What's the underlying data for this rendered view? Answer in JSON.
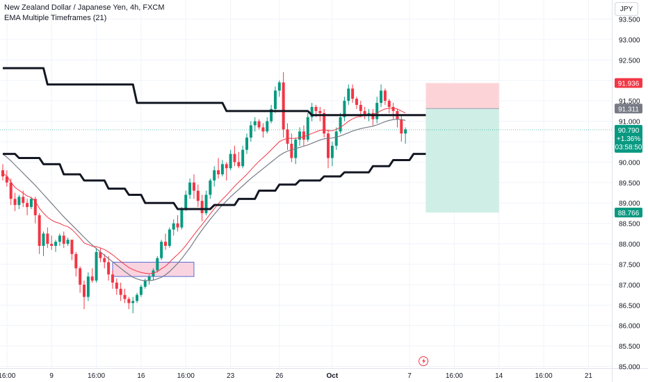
{
  "legend": {
    "symbol_line": "New Zealand Dollar / Japanese Yen, 4h, FXCM",
    "indicator_line": "EMA Multiple Timeframes (21)"
  },
  "currency": "JPY",
  "colors": {
    "up": "#089981",
    "down": "#f23645",
    "ema_fast": "#f23645",
    "ema_mid": "#787b86",
    "ema_htf": "#131722",
    "zone_fill": "#f8c8d8",
    "zone_border": "#5b6bd6",
    "target_fill": "#cfeee6",
    "stop_fill": "#fcd4d8",
    "grid": "#f0f3fa"
  },
  "chart_data": {
    "type": "candlestick",
    "title": "New Zealand Dollar / Japanese Yen, 4h, FXCM",
    "ylim": [
      85.0,
      93.75
    ],
    "y_ticks": [
      "85.000",
      "85.500",
      "86.000",
      "86.500",
      "87.000",
      "87.500",
      "88.000",
      "88.500",
      "89.000",
      "89.500",
      "90.000",
      "90.500",
      "91.000",
      "91.500",
      "92.000",
      "92.500",
      "93.000",
      "93.500"
    ],
    "x_ticks": [
      {
        "label": "16:00",
        "i": 1
      },
      {
        "label": "9",
        "i": 12
      },
      {
        "label": "16:00",
        "i": 23
      },
      {
        "label": "16",
        "i": 34
      },
      {
        "label": "16:00",
        "i": 45
      },
      {
        "label": "23",
        "i": 56
      },
      {
        "label": "26",
        "i": 68
      },
      {
        "label": "Oct",
        "i": 81
      },
      {
        "label": "7",
        "i": 100
      },
      {
        "label": "16:00",
        "i": 111
      },
      {
        "label": "14",
        "i": 122
      },
      {
        "label": "16:00",
        "i": 133
      },
      {
        "label": "21",
        "i": 144
      }
    ],
    "candles": [
      [
        89.8,
        89.95,
        89.55,
        89.65
      ],
      [
        89.65,
        89.8,
        89.4,
        89.5
      ],
      [
        89.5,
        89.6,
        88.95,
        89.1
      ],
      [
        89.1,
        89.25,
        88.8,
        88.95
      ],
      [
        88.95,
        89.2,
        88.85,
        89.15
      ],
      [
        89.15,
        89.3,
        88.9,
        89.0
      ],
      [
        89.0,
        89.1,
        88.7,
        88.9
      ],
      [
        88.9,
        89.15,
        88.85,
        89.1
      ],
      [
        89.1,
        89.15,
        88.5,
        88.7
      ],
      [
        88.7,
        88.75,
        87.75,
        87.95
      ],
      [
        87.95,
        88.3,
        87.7,
        88.25
      ],
      [
        88.25,
        88.4,
        87.9,
        88.0
      ],
      [
        88.0,
        88.2,
        87.85,
        87.95
      ],
      [
        87.95,
        88.1,
        87.8,
        88.05
      ],
      [
        88.05,
        88.25,
        87.95,
        88.2
      ],
      [
        88.2,
        88.3,
        87.9,
        88.0
      ],
      [
        88.0,
        88.15,
        87.95,
        88.1
      ],
      [
        88.1,
        88.1,
        87.6,
        87.75
      ],
      [
        87.75,
        87.8,
        87.2,
        87.4
      ],
      [
        87.4,
        87.45,
        86.8,
        87.0
      ],
      [
        87.0,
        87.1,
        86.4,
        86.7
      ],
      [
        86.7,
        87.3,
        86.6,
        87.2
      ],
      [
        87.2,
        87.4,
        87.05,
        87.1
      ],
      [
        87.1,
        87.9,
        87.05,
        87.8
      ],
      [
        87.8,
        87.9,
        87.55,
        87.65
      ],
      [
        87.65,
        87.75,
        87.4,
        87.55
      ],
      [
        87.55,
        87.7,
        87.1,
        87.25
      ],
      [
        87.25,
        87.35,
        86.9,
        87.05
      ],
      [
        87.05,
        87.15,
        86.75,
        86.9
      ],
      [
        86.9,
        87.05,
        86.6,
        86.75
      ],
      [
        86.75,
        86.9,
        86.55,
        86.65
      ],
      [
        86.65,
        86.7,
        86.4,
        86.55
      ],
      [
        86.55,
        86.7,
        86.3,
        86.6
      ],
      [
        86.6,
        86.8,
        86.55,
        86.75
      ],
      [
        86.75,
        87.0,
        86.7,
        86.95
      ],
      [
        86.95,
        87.15,
        86.9,
        87.1
      ],
      [
        87.1,
        87.25,
        87.0,
        87.2
      ],
      [
        87.2,
        87.4,
        87.1,
        87.35
      ],
      [
        87.35,
        87.7,
        87.3,
        87.65
      ],
      [
        87.65,
        88.1,
        87.6,
        88.05
      ],
      [
        88.05,
        88.25,
        87.85,
        87.95
      ],
      [
        87.95,
        88.4,
        87.9,
        88.35
      ],
      [
        88.35,
        88.6,
        88.2,
        88.5
      ],
      [
        88.5,
        88.7,
        88.3,
        88.4
      ],
      [
        88.4,
        88.9,
        88.35,
        88.85
      ],
      [
        88.85,
        89.3,
        88.8,
        89.2
      ],
      [
        89.2,
        89.6,
        89.1,
        89.5
      ],
      [
        89.5,
        89.7,
        89.1,
        89.3
      ],
      [
        89.3,
        89.45,
        88.9,
        89.05
      ],
      [
        89.05,
        89.2,
        88.55,
        88.75
      ],
      [
        88.75,
        89.3,
        88.7,
        89.2
      ],
      [
        89.2,
        89.6,
        89.1,
        89.55
      ],
      [
        89.55,
        89.9,
        89.4,
        89.8
      ],
      [
        89.8,
        90.1,
        89.6,
        89.7
      ],
      [
        89.7,
        90.05,
        89.65,
        89.95
      ],
      [
        89.95,
        90.0,
        89.55,
        89.85
      ],
      [
        89.85,
        90.3,
        89.8,
        90.2
      ],
      [
        90.2,
        90.4,
        89.9,
        90.0
      ],
      [
        90.0,
        90.25,
        89.85,
        89.9
      ],
      [
        89.9,
        90.4,
        89.85,
        90.3
      ],
      [
        90.3,
        90.7,
        90.2,
        90.6
      ],
      [
        90.6,
        91.0,
        90.5,
        90.9
      ],
      [
        90.9,
        91.1,
        90.75,
        91.0
      ],
      [
        91.0,
        91.05,
        90.8,
        90.85
      ],
      [
        90.85,
        90.95,
        90.6,
        90.75
      ],
      [
        90.75,
        91.1,
        90.7,
        91.0
      ],
      [
        91.0,
        91.4,
        90.95,
        91.3
      ],
      [
        91.3,
        91.85,
        91.2,
        91.75
      ],
      [
        91.75,
        92.0,
        91.6,
        91.95
      ],
      [
        91.95,
        92.2,
        90.6,
        90.8
      ],
      [
        90.8,
        90.95,
        90.3,
        90.45
      ],
      [
        90.45,
        90.7,
        90.0,
        90.1
      ],
      [
        90.1,
        90.6,
        89.95,
        90.55
      ],
      [
        90.55,
        90.85,
        90.4,
        90.75
      ],
      [
        90.75,
        90.9,
        90.4,
        90.55
      ],
      [
        90.55,
        91.2,
        90.5,
        91.1
      ],
      [
        91.1,
        91.45,
        91.0,
        91.35
      ],
      [
        91.35,
        91.4,
        91.1,
        91.25
      ],
      [
        91.25,
        91.35,
        91.0,
        91.2
      ],
      [
        91.2,
        91.3,
        90.6,
        90.7
      ],
      [
        90.7,
        90.8,
        89.85,
        90.1
      ],
      [
        90.1,
        90.5,
        89.9,
        90.4
      ],
      [
        90.4,
        90.85,
        90.3,
        90.75
      ],
      [
        90.75,
        91.2,
        90.7,
        91.1
      ],
      [
        91.1,
        91.6,
        91.0,
        91.5
      ],
      [
        91.5,
        91.9,
        91.4,
        91.8
      ],
      [
        91.8,
        91.9,
        91.45,
        91.55
      ],
      [
        91.55,
        91.6,
        91.3,
        91.4
      ],
      [
        91.4,
        91.5,
        91.1,
        91.25
      ],
      [
        91.25,
        91.35,
        91.05,
        91.15
      ],
      [
        91.15,
        91.3,
        91.0,
        91.2
      ],
      [
        91.2,
        91.3,
        90.9,
        91.05
      ],
      [
        91.05,
        91.6,
        90.95,
        91.45
      ],
      [
        91.45,
        91.9,
        91.35,
        91.75
      ],
      [
        91.75,
        91.8,
        91.4,
        91.5
      ],
      [
        91.5,
        91.55,
        91.2,
        91.35
      ],
      [
        91.35,
        91.45,
        91.05,
        91.25
      ],
      [
        91.25,
        91.3,
        90.85,
        91.05
      ],
      [
        91.05,
        91.15,
        90.5,
        90.7
      ],
      [
        90.7,
        90.85,
        90.45,
        90.8
      ]
    ],
    "ema_fast": [
      89.72,
      89.66,
      89.51,
      89.38,
      89.31,
      89.24,
      89.17,
      89.13,
      89.04,
      88.87,
      88.75,
      88.65,
      88.58,
      88.53,
      88.5,
      88.45,
      88.42,
      88.35,
      88.25,
      88.14,
      88.02,
      87.98,
      87.94,
      87.93,
      87.9,
      87.86,
      87.8,
      87.73,
      87.65,
      87.57,
      87.49,
      87.42,
      87.37,
      87.33,
      87.3,
      87.28,
      87.27,
      87.28,
      87.32,
      87.39,
      87.45,
      87.55,
      87.65,
      87.74,
      87.84,
      87.96,
      88.09,
      88.22,
      88.35,
      88.47,
      88.6,
      88.73,
      88.86,
      88.98,
      89.09,
      89.19,
      89.3,
      89.41,
      89.51,
      89.6,
      89.7,
      89.81,
      89.92,
      90.02,
      90.11,
      90.2,
      90.3,
      90.4,
      90.5,
      90.55,
      90.58,
      90.58,
      90.58,
      90.6,
      90.62,
      90.66,
      90.7,
      90.74,
      90.78,
      90.79,
      90.77,
      90.77,
      90.8,
      90.85,
      90.92,
      91.0,
      91.06,
      91.1,
      91.12,
      91.14,
      91.16,
      91.17,
      91.2,
      91.26,
      91.3,
      91.32,
      91.32,
      91.3,
      91.25,
      91.2
    ],
    "ema_mid": [
      90.2,
      90.12,
      90.03,
      89.93,
      89.83,
      89.73,
      89.63,
      89.53,
      89.43,
      89.32,
      89.21,
      89.1,
      88.99,
      88.88,
      88.77,
      88.66,
      88.56,
      88.46,
      88.36,
      88.26,
      88.16,
      88.06,
      87.97,
      87.88,
      87.8,
      87.72,
      87.64,
      87.56,
      87.48,
      87.4,
      87.32,
      87.25,
      87.18,
      87.14,
      87.11,
      87.1,
      87.1,
      87.11,
      87.14,
      87.18,
      87.24,
      87.32,
      87.42,
      87.52,
      87.64,
      87.77,
      87.9,
      88.05,
      88.2,
      88.34,
      88.47,
      88.6,
      88.72,
      88.84,
      88.95,
      89.05,
      89.15,
      89.24,
      89.33,
      89.42,
      89.51,
      89.6,
      89.68,
      89.76,
      89.84,
      89.92,
      90.0,
      90.08,
      90.16,
      90.22,
      90.27,
      90.3,
      90.33,
      90.36,
      90.39,
      90.42,
      90.46,
      90.5,
      90.54,
      90.57,
      90.58,
      90.59,
      90.61,
      90.64,
      90.68,
      90.72,
      90.76,
      90.79,
      90.82,
      90.84,
      90.86,
      90.88,
      90.91,
      90.95,
      90.99,
      91.02,
      91.04,
      91.05,
      91.04,
      91.02
    ],
    "ema_htf_a": [
      [
        0,
        92.3
      ],
      [
        10,
        92.3
      ],
      [
        11,
        91.9
      ],
      [
        32,
        91.9
      ],
      [
        33,
        91.45
      ],
      [
        54,
        91.45
      ],
      [
        55,
        91.25
      ],
      [
        75,
        91.25
      ],
      [
        76,
        91.15
      ],
      [
        104,
        91.15
      ]
    ],
    "ema_htf_b": [
      [
        0,
        90.2
      ],
      [
        3,
        90.2
      ],
      [
        4,
        90.1
      ],
      [
        9,
        90.1
      ],
      [
        10,
        89.95
      ],
      [
        14,
        89.95
      ],
      [
        15,
        89.7
      ],
      [
        19,
        89.7
      ],
      [
        20,
        89.55
      ],
      [
        25,
        89.55
      ],
      [
        26,
        89.35
      ],
      [
        30,
        89.35
      ],
      [
        31,
        89.2
      ],
      [
        34,
        89.2
      ],
      [
        35,
        89.0
      ],
      [
        42,
        89.0
      ],
      [
        43,
        88.85
      ],
      [
        51,
        88.85
      ],
      [
        52,
        88.95
      ],
      [
        57,
        88.95
      ],
      [
        58,
        89.1
      ],
      [
        62,
        89.1
      ],
      [
        63,
        89.3
      ],
      [
        67,
        89.3
      ],
      [
        68,
        89.45
      ],
      [
        72,
        89.45
      ],
      [
        73,
        89.55
      ],
      [
        78,
        89.55
      ],
      [
        79,
        89.65
      ],
      [
        83,
        89.65
      ],
      [
        84,
        89.75
      ],
      [
        90,
        89.75
      ],
      [
        91,
        89.9
      ],
      [
        95,
        89.9
      ],
      [
        96,
        90.05
      ],
      [
        100,
        90.05
      ],
      [
        101,
        90.2
      ],
      [
        104,
        90.2
      ]
    ],
    "zone": {
      "i_start": 27,
      "i_end": 47,
      "top": 87.55,
      "bottom": 87.2
    },
    "position": {
      "i_start": 104,
      "i_end": 122,
      "stop": 91.936,
      "entry": 91.311,
      "target": 88.766
    },
    "price_labels": [
      {
        "text": "91.936",
        "value": 91.936,
        "color": "#f23645"
      },
      {
        "text": "91.311",
        "value": 91.311,
        "color": "#787b86"
      },
      {
        "text": "88.766",
        "value": 88.766,
        "color": "#089981"
      }
    ],
    "current_price": {
      "value": 90.79,
      "price": "90.790",
      "change": "+1.36%",
      "countdown": "03:58:50",
      "color": "#089981"
    }
  }
}
